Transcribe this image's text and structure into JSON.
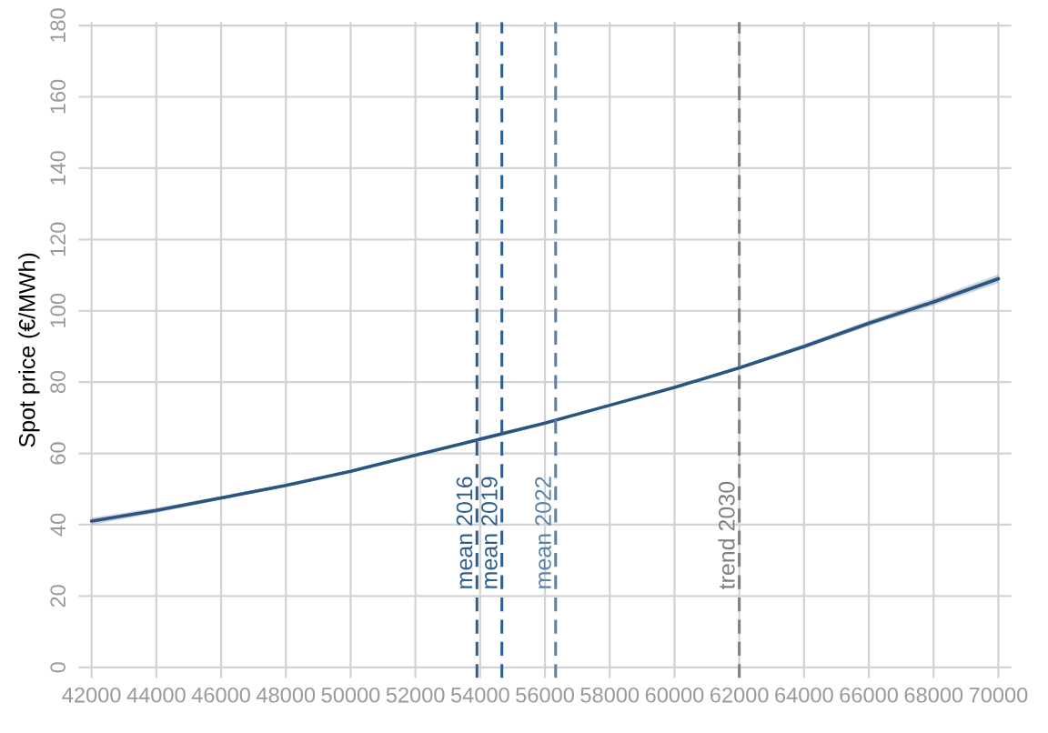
{
  "chart_data": {
    "type": "line",
    "ylabel": "Spot price (€/MWh)",
    "x": [
      42000,
      44000,
      46000,
      48000,
      50000,
      52000,
      54000,
      56000,
      58000,
      60000,
      62000,
      64000,
      66000,
      68000,
      70000
    ],
    "series": [
      {
        "color": "#2b5580",
        "values": [
          41,
          44,
          47.5,
          51,
          55,
          59.5,
          64,
          68.5,
          73.5,
          78.5,
          84,
          90,
          96.5,
          102.5,
          109
        ],
        "lower": [
          40,
          43.3,
          47,
          50.6,
          54.7,
          59.2,
          63.7,
          68.2,
          73.2,
          78.2,
          83.6,
          89.4,
          95.7,
          101.5,
          107.8
        ],
        "upper": [
          42,
          44.7,
          48,
          51.4,
          55.3,
          59.8,
          64.3,
          68.8,
          73.8,
          78.8,
          84.4,
          90.6,
          97.3,
          103.5,
          110.2
        ]
      }
    ],
    "ref_lines": [
      {
        "axis": "x",
        "value": 53900,
        "label": "mean 2016",
        "color": "#2c5f8f",
        "line_style": "dashed"
      },
      {
        "axis": "x",
        "value": 54670,
        "label": "mean 2019",
        "color": "#2c5f8f",
        "line_style": "dashed"
      },
      {
        "axis": "x",
        "value": 56330,
        "label": "mean 2022",
        "color": "#5b82aa",
        "line_style": "dashed"
      },
      {
        "axis": "x",
        "value": 62000,
        "label": "trend 2030",
        "color": "#7f7f7f",
        "line_style": "dashed"
      }
    ],
    "xlim": [
      41600,
      70400
    ],
    "ylim": [
      -3,
      181
    ],
    "xticks": [
      42000,
      44000,
      46000,
      48000,
      50000,
      52000,
      54000,
      56000,
      58000,
      60000,
      62000,
      64000,
      66000,
      68000,
      70000
    ],
    "yticks": [
      0,
      20,
      40,
      60,
      80,
      100,
      120,
      140,
      160,
      180
    ],
    "grid": true,
    "legend": false,
    "marker": "none",
    "line_style": "solid"
  }
}
